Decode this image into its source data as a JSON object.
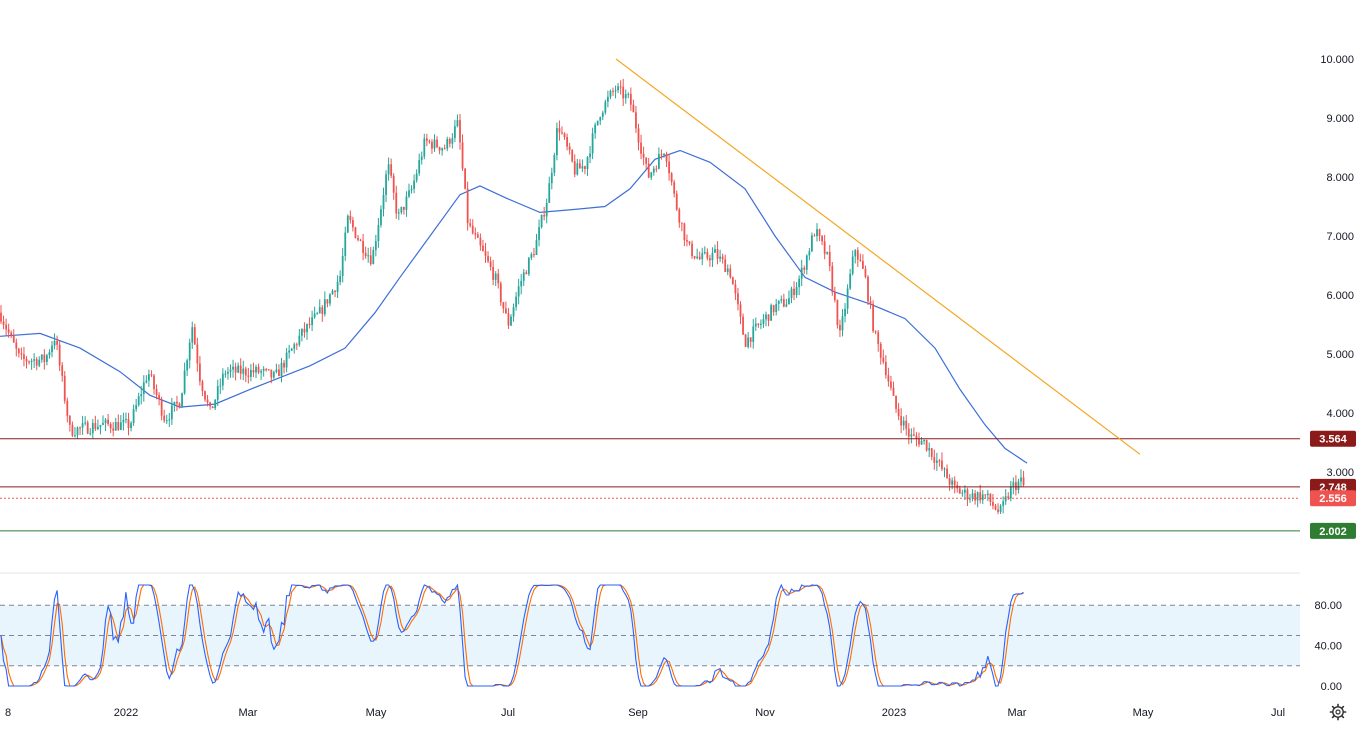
{
  "chart_data": {
    "type": "candlestick",
    "main_panel": {
      "y_ticks": [
        "10.000",
        "9.000",
        "8.000",
        "7.000",
        "6.000",
        "5.000",
        "4.000",
        "3.000"
      ],
      "y_range": [
        2.0,
        10.0
      ],
      "price_lines": [
        {
          "value": 3.564,
          "label": "3.564",
          "color": "#8b1a1a",
          "style": "solid"
        },
        {
          "value": 2.748,
          "label": "2.748",
          "color": "#8b1a1a",
          "style": "solid"
        },
        {
          "value": 2.556,
          "label": "2.556",
          "color": "#ef5350",
          "style": "dotted"
        },
        {
          "value": 2.002,
          "label": "2.002",
          "color": "#2e7d32",
          "style": "solid"
        }
      ],
      "trendline": {
        "color": "#f5a623",
        "from_value": 10.0,
        "to_value": 3.3
      },
      "moving_average_color": "#3d6fd8",
      "up_color": "#26a69a",
      "down_color": "#ef5350"
    },
    "stoch_panel": {
      "y_ticks": [
        "80.00",
        "40.00",
        "0.00"
      ],
      "y_range": [
        0,
        100
      ],
      "bands": [
        80,
        50,
        20
      ],
      "k_color": "#2962ff",
      "d_color": "#ff6d00"
    },
    "x_ticks": [
      "8",
      "2022",
      "Mar",
      "May",
      "Jul",
      "Sep",
      "Nov",
      "2023",
      "Mar",
      "May",
      "Jul"
    ]
  },
  "icons": {
    "settings": "gear-icon"
  }
}
